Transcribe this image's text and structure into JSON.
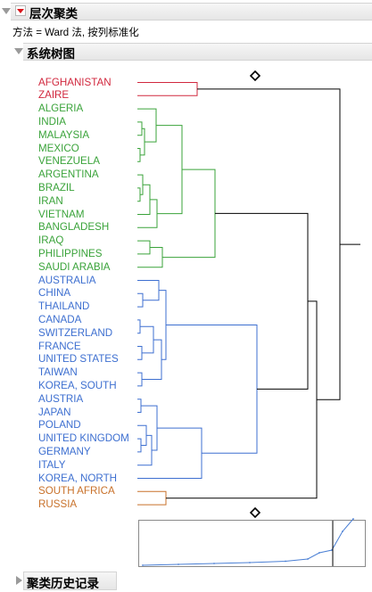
{
  "report": {
    "title": "层次聚类",
    "method_label": "方法 = Ward 法, 按列标准化"
  },
  "dendrogram": {
    "title": "系统树图",
    "clusters": [
      {
        "color": "#d1283e",
        "leaves": [
          "AFGHANISTAN",
          "ZAIRE"
        ]
      },
      {
        "color": "#3aa33a",
        "leaves": [
          "ALGERIA",
          "INDIA",
          "MALAYSIA",
          "MEXICO",
          "VENEZUELA",
          "ARGENTINA",
          "BRAZIL",
          "IRAN",
          "VIETNAM",
          "BANGLADESH",
          "IRAQ",
          "PHILIPPINES",
          "SAUDI ARABIA"
        ]
      },
      {
        "color": "#3d6fd0",
        "leaves": [
          "AUSTRALIA",
          "CHINA",
          "THAILAND",
          "CANADA",
          "SWITZERLAND",
          "FRANCE",
          "UNITED STATES",
          "TAIWAN",
          "KOREA, SOUTH",
          "AUSTRIA",
          "JAPAN",
          "POLAND",
          "UNITED KINGDOM",
          "GERMANY",
          "ITALY",
          "KOREA, NORTH"
        ]
      },
      {
        "color": "#c8712a",
        "leaves": [
          "SOUTH AFRICA",
          "RUSSIA"
        ]
      }
    ]
  },
  "history": {
    "title": "聚类历史记录"
  },
  "colors": {
    "tree_root": "#000000",
    "distance_curve": "#4a7fd4"
  }
}
